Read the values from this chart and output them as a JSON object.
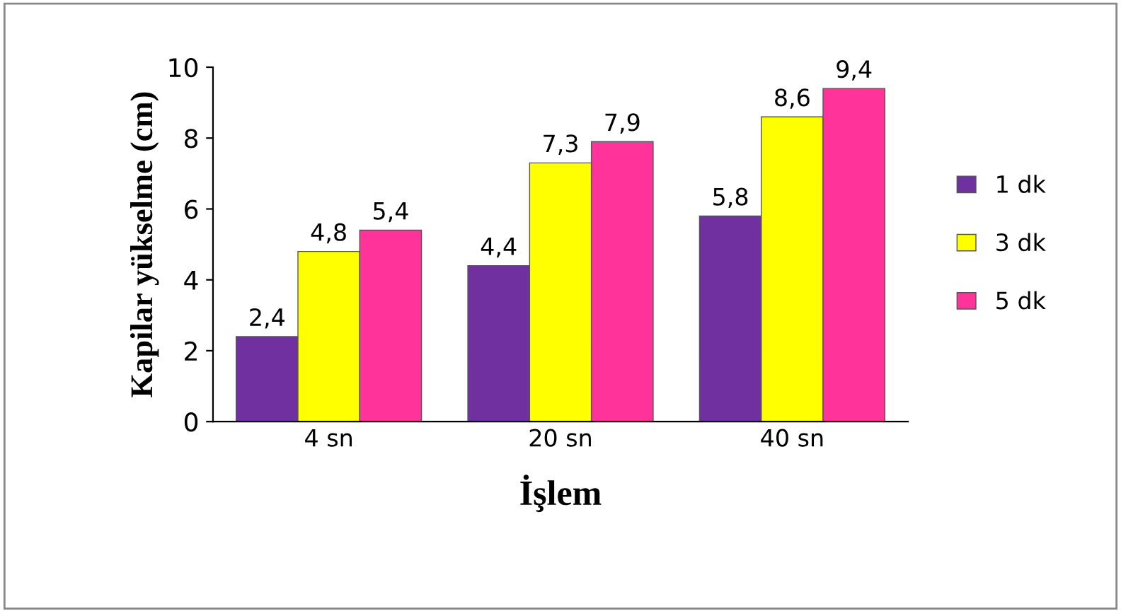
{
  "chart_data": {
    "type": "bar",
    "xlabel": "İşlem",
    "ylabel": "Kapilar yükselme (cm)",
    "categories": [
      "4 sn",
      "20 sn",
      "40 sn"
    ],
    "series": [
      {
        "name": "1 dk",
        "color": "#7030a0",
        "values": [
          2.4,
          4.4,
          5.8
        ],
        "value_labels": [
          "2,4",
          "4,4",
          "5,8"
        ]
      },
      {
        "name": "3 dk",
        "color": "#ffff00",
        "values": [
          4.8,
          7.3,
          8.6
        ],
        "value_labels": [
          "4,8",
          "7,3",
          "8,6"
        ]
      },
      {
        "name": "5 dk",
        "color": "#ff3399",
        "values": [
          5.4,
          7.9,
          9.4
        ],
        "value_labels": [
          "5,4",
          "7,9",
          "9,4"
        ]
      }
    ],
    "ylim": [
      0,
      10
    ],
    "yticks": [
      0,
      2,
      4,
      6,
      8,
      10
    ],
    "legend": "right",
    "grid": false
  }
}
